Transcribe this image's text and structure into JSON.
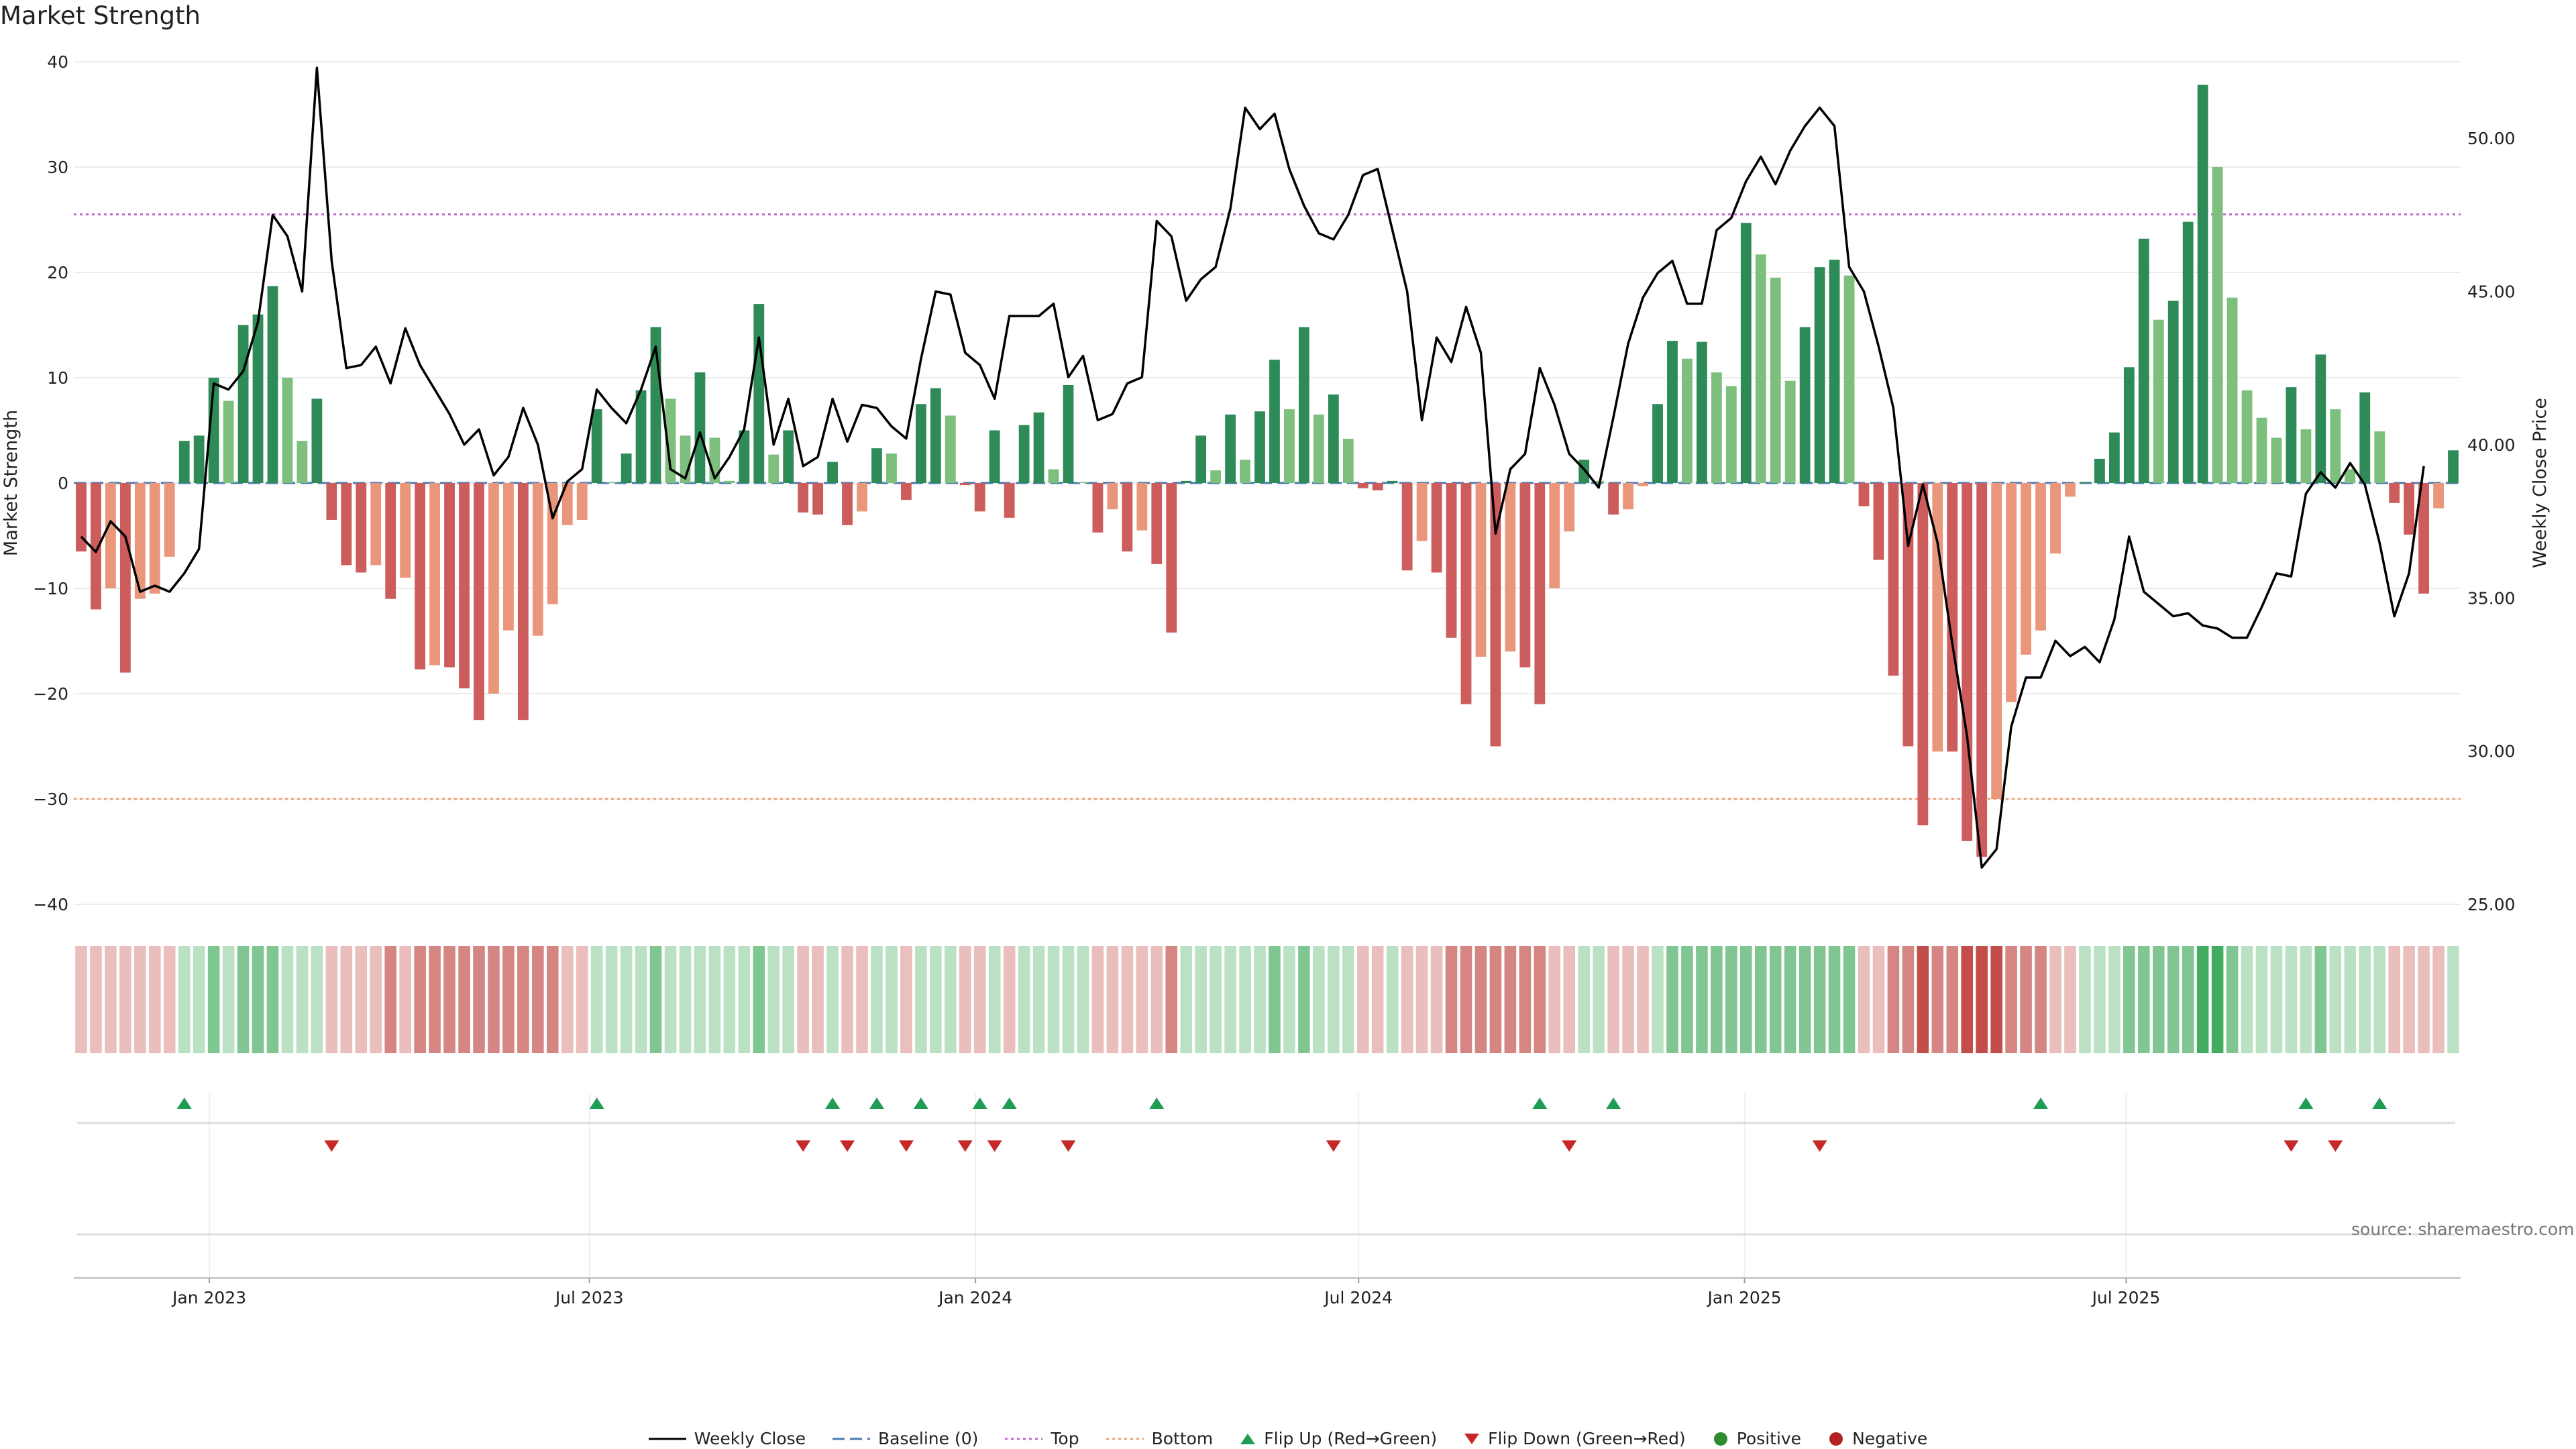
{
  "chart_data": {
    "title": "Market Strength",
    "type": "bar",
    "ylabel_left": "Market Strength",
    "ylabel_right": "Weekly Close Price",
    "ylim_left": [
      -40,
      40
    ],
    "ylim_right": [
      25,
      52.5
    ],
    "yticks_left": [
      "40",
      "30",
      "20",
      "10",
      "0",
      "−10",
      "−20",
      "−30",
      "−40"
    ],
    "yticks_right": [
      "50.00",
      "45.00",
      "40.00",
      "35.00",
      "30.00",
      "25.00"
    ],
    "xticks": [
      "Jan 2023",
      "Jul 2023",
      "Jan 2024",
      "Jul 2024",
      "Jan 2025",
      "Jul 2025"
    ],
    "top_level": 25.5,
    "bottom_level": -30,
    "strength": [
      -6.5,
      -12,
      -10,
      -18,
      -11,
      -10.5,
      -7,
      4,
      4.5,
      10,
      7.8,
      15,
      16,
      18.7,
      10,
      4,
      8,
      -3.5,
      -7.8,
      -8.5,
      -7.8,
      -11,
      -9,
      -17.7,
      -17.3,
      -17.5,
      -19.5,
      -22.5,
      -20,
      -14,
      -22.5,
      -14.5,
      -11.5,
      -4,
      -3.5,
      7,
      0.1,
      2.8,
      8.8,
      14.8,
      8,
      4.5,
      10.5,
      4.3,
      0.2,
      5,
      17,
      2.7,
      5,
      -2.8,
      -3,
      2,
      -4,
      -2.7,
      3.3,
      2.8,
      -1.6,
      7.5,
      9,
      6.4,
      -0.2,
      -2.7,
      5,
      -3.3,
      5.5,
      6.7,
      1.3,
      9.3,
      0.1,
      -4.7,
      -2.5,
      -6.5,
      -4.5,
      -7.7,
      -14.2,
      0.2,
      4.5,
      1.2,
      6.5,
      2.2,
      6.8,
      11.7,
      7,
      14.8,
      6.5,
      8.4,
      4.2,
      -0.5,
      -0.7,
      0.2,
      -8.3,
      -5.5,
      -8.5,
      -14.7,
      -21,
      -16.5,
      -25,
      -16,
      -17.5,
      -21,
      -10,
      -4.6,
      2.2,
      0.2,
      -3,
      -2.5,
      -0.3,
      7.5,
      13.5,
      11.8,
      13.4,
      10.5,
      9.2,
      24.7,
      21.7,
      19.5,
      9.7,
      14.8,
      20.5,
      21.2,
      19.7,
      -2.2,
      -7.3,
      -18.3,
      -25,
      -32.5,
      -25.5,
      -25.5,
      -34,
      -35.5,
      -30,
      -20.8,
      -16.3,
      -14,
      -6.7,
      -1.3,
      0.1,
      2.3,
      4.8,
      11,
      23.2,
      15.5,
      17.3,
      24.8,
      37.8,
      30,
      17.6,
      8.8,
      6.2,
      4.3,
      9.1,
      5.1,
      12.2,
      7,
      1.3,
      8.6,
      4.9,
      -1.9,
      -4.9,
      -10.5,
      -2.4,
      3.1
    ],
    "price": [
      37,
      36.5,
      37.5,
      37,
      35.2,
      35.4,
      35.2,
      35.8,
      36.6,
      42,
      41.8,
      42.4,
      44,
      47.5,
      46.8,
      45,
      52.3,
      46,
      42.5,
      42.6,
      43.2,
      42,
      43.8,
      42.6,
      41.8,
      41,
      40,
      40.5,
      39,
      39.6,
      41.2,
      40,
      37.6,
      38.8,
      39.2,
      41.8,
      41.2,
      40.7,
      41.8,
      43.2,
      39.2,
      38.9,
      40.4,
      38.9,
      39.6,
      40.5,
      43.5,
      40,
      41.5,
      39.3,
      39.6,
      41.5,
      40.1,
      41.3,
      41.2,
      40.6,
      40.2,
      42.8,
      45,
      44.9,
      43,
      42.6,
      41.5,
      44.2,
      44.2,
      44.2,
      44.6,
      42.2,
      42.9,
      40.8,
      41,
      42,
      42.2,
      47.3,
      46.8,
      44.7,
      45.4,
      45.8,
      47.7,
      51,
      50.3,
      50.8,
      49,
      47.8,
      46.9,
      46.7,
      47.5,
      48.8,
      49,
      47,
      45,
      40.8,
      43.5,
      42.7,
      44.5,
      43,
      37.1,
      39.2,
      39.7,
      42.5,
      41.3,
      39.7,
      39.2,
      38.6,
      40.9,
      43.3,
      44.8,
      45.6,
      46,
      44.6,
      44.6,
      47,
      47.4,
      48.6,
      49.4,
      48.5,
      49.6,
      50.4,
      51,
      50.4,
      45.8,
      45,
      43.2,
      41.2,
      36.7,
      38.7,
      36.8,
      33.5,
      30.5,
      26.2,
      26.8,
      30.8,
      32.4,
      32.4,
      33.6,
      33.1,
      33.4,
      32.9,
      34.3,
      37,
      35.2,
      34.8,
      34.4,
      34.5,
      34.1,
      34,
      33.7,
      33.7,
      34.7,
      35.8,
      35.7,
      38.4,
      39.1,
      38.6,
      39.4,
      38.7,
      36.8,
      34.4,
      35.8,
      39.3
    ],
    "heat": [
      -1,
      -1,
      -1,
      -1,
      -1,
      -1,
      -1,
      1,
      1,
      2,
      1,
      2,
      2,
      2,
      1,
      1,
      1,
      -1,
      -1,
      -1,
      -1,
      -2,
      -1,
      -2,
      -2,
      -2,
      -2,
      -2,
      -2,
      -2,
      -2,
      -2,
      -2,
      -1,
      -1,
      1,
      1,
      1,
      1,
      2,
      1,
      1,
      1,
      1,
      1,
      1,
      2,
      1,
      1,
      -1,
      -1,
      1,
      -1,
      -1,
      1,
      1,
      -1,
      1,
      1,
      1,
      -1,
      -1,
      1,
      -1,
      1,
      1,
      1,
      1,
      1,
      -1,
      -1,
      -1,
      -1,
      -1,
      -2,
      1,
      1,
      1,
      1,
      1,
      1,
      2,
      1,
      2,
      1,
      1,
      1,
      -1,
      -1,
      1,
      -1,
      -1,
      -1,
      -2,
      -2,
      -2,
      -2,
      -2,
      -2,
      -2,
      -1,
      -1,
      1,
      1,
      -1,
      -1,
      -1,
      1,
      2,
      2,
      2,
      2,
      2,
      2,
      2,
      2,
      2,
      2,
      2,
      2,
      2,
      -1,
      -1,
      -2,
      -2,
      -3,
      -2,
      -2,
      -3,
      -3,
      -3,
      -2,
      -2,
      -2,
      -1,
      -1,
      1,
      1,
      1,
      2,
      2,
      2,
      2,
      2,
      3,
      3,
      2,
      1,
      1,
      1,
      1,
      1,
      2,
      1,
      1,
      1,
      1,
      -1,
      -1,
      -1,
      -1,
      1
    ],
    "flip_up": [
      7,
      35,
      51,
      54,
      57,
      61,
      63,
      73,
      99,
      104,
      133,
      151,
      156
    ],
    "flip_down": [
      17,
      49,
      52,
      56,
      60,
      62,
      67,
      85,
      101,
      118,
      150,
      153
    ],
    "legend": [
      {
        "key": "weekly_close",
        "label": "Weekly Close"
      },
      {
        "key": "baseline",
        "label": "Baseline (0)"
      },
      {
        "key": "top",
        "label": "Top"
      },
      {
        "key": "bottom",
        "label": "Bottom"
      },
      {
        "key": "flip_up",
        "label": "Flip Up (Red→Green)"
      },
      {
        "key": "flip_down",
        "label": "Flip Down (Green→Red)"
      },
      {
        "key": "positive",
        "label": "Positive"
      },
      {
        "key": "negative",
        "label": "Negative"
      }
    ]
  },
  "source_text": "source: sharemaestro.com",
  "colors": {
    "pos_strong": "#2e8b57",
    "pos_light": "#7dbf7d",
    "neg_strong": "#cd5c5c",
    "neg_light": "#e9967a",
    "flip_up": "#1f9d55",
    "flip_down": "#c62828",
    "positive_dot": "#2e8b2e",
    "negative_dot": "#b22222",
    "top_line": "#c06ad0",
    "bottom_line": "#f0a070",
    "baseline": "#4a78b0",
    "price_line": "#000000"
  }
}
